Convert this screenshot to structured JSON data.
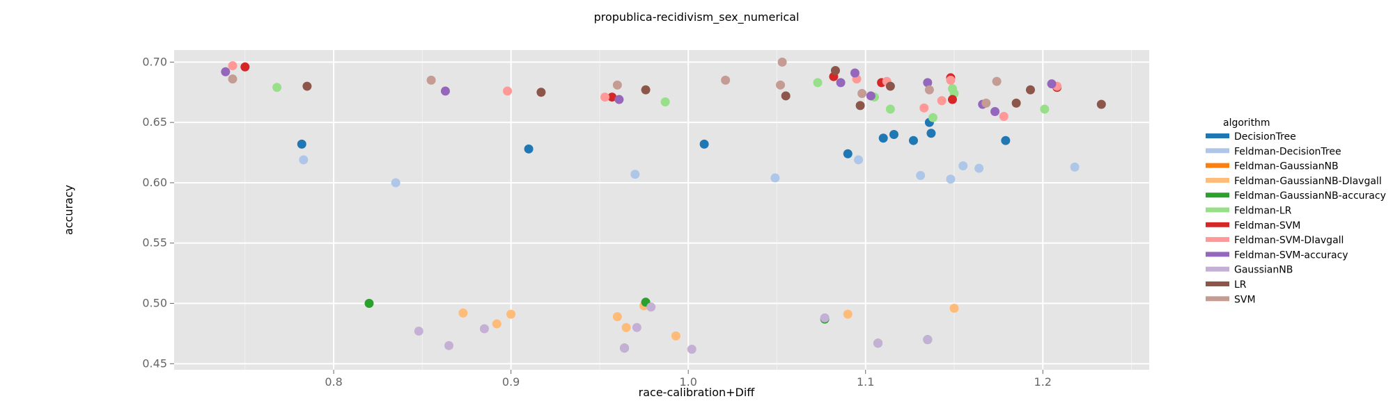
{
  "chart_data": {
    "type": "scatter",
    "title": "propublica-recidivism_sex_numerical",
    "xlabel": "race-calibration+Diff",
    "ylabel": "accuracy",
    "xlim": [
      0.71,
      1.26
    ],
    "ylim": [
      0.445,
      0.71
    ],
    "xticks": [
      0.8,
      0.9,
      1.0,
      1.1,
      1.2
    ],
    "xtick_labels": [
      "0.8",
      "0.9",
      "1.0",
      "1.1",
      "1.2"
    ],
    "yticks": [
      0.45,
      0.5,
      0.55,
      0.6,
      0.65,
      0.7
    ],
    "ytick_labels": [
      "0.45",
      "0.50",
      "0.55",
      "0.60",
      "0.65",
      "0.70"
    ],
    "grid": true,
    "legend_title": "algorithm",
    "legend_position": "right",
    "series": [
      {
        "name": "DecisionTree",
        "color": "#1f77b4",
        "points": [
          [
            0.782,
            0.632
          ],
          [
            0.91,
            0.628
          ],
          [
            1.009,
            0.632
          ],
          [
            1.09,
            0.624
          ],
          [
            1.11,
            0.637
          ],
          [
            1.116,
            0.64
          ],
          [
            1.127,
            0.635
          ],
          [
            1.136,
            0.65
          ],
          [
            1.137,
            0.641
          ],
          [
            1.179,
            0.635
          ]
        ]
      },
      {
        "name": "Feldman-DecisionTree",
        "color": "#aec7e8",
        "points": [
          [
            0.783,
            0.619
          ],
          [
            0.835,
            0.6
          ],
          [
            0.97,
            0.607
          ],
          [
            1.049,
            0.604
          ],
          [
            1.096,
            0.619
          ],
          [
            1.131,
            0.606
          ],
          [
            1.148,
            0.603
          ],
          [
            1.155,
            0.614
          ],
          [
            1.164,
            0.612
          ],
          [
            1.218,
            0.613
          ]
        ]
      },
      {
        "name": "Feldman-GaussianNB",
        "color": "#ff7f0e",
        "points": []
      },
      {
        "name": "Feldman-GaussianNB-DIavgall",
        "color": "#ffbb78",
        "points": [
          [
            0.873,
            0.492
          ],
          [
            0.892,
            0.483
          ],
          [
            0.9,
            0.491
          ],
          [
            0.96,
            0.489
          ],
          [
            0.965,
            0.48
          ],
          [
            0.975,
            0.498
          ],
          [
            0.993,
            0.473
          ],
          [
            1.09,
            0.491
          ],
          [
            1.15,
            0.496
          ]
        ]
      },
      {
        "name": "Feldman-GaussianNB-accuracy",
        "color": "#2ca02c",
        "points": [
          [
            0.82,
            0.5
          ],
          [
            0.964,
            0.463
          ],
          [
            0.976,
            0.501
          ],
          [
            1.077,
            0.487
          ],
          [
            1.107,
            0.467
          ],
          [
            1.135,
            0.47
          ]
        ]
      },
      {
        "name": "Feldman-LR",
        "color": "#98df8a",
        "points": [
          [
            0.768,
            0.679
          ],
          [
            0.987,
            0.667
          ],
          [
            1.073,
            0.683
          ],
          [
            1.105,
            0.671
          ],
          [
            1.114,
            0.661
          ],
          [
            1.138,
            0.654
          ],
          [
            1.149,
            0.678
          ],
          [
            1.15,
            0.674
          ],
          [
            1.201,
            0.661
          ]
        ]
      },
      {
        "name": "Feldman-SVM",
        "color": "#d62728",
        "points": [
          [
            0.75,
            0.696
          ],
          [
            0.957,
            0.671
          ],
          [
            1.082,
            0.688
          ],
          [
            1.109,
            0.683
          ],
          [
            1.148,
            0.687
          ],
          [
            1.149,
            0.669
          ],
          [
            1.208,
            0.679
          ]
        ]
      },
      {
        "name": "Feldman-SVM-DIavgall",
        "color": "#ff9896",
        "points": [
          [
            0.743,
            0.697
          ],
          [
            0.898,
            0.676
          ],
          [
            0.953,
            0.671
          ],
          [
            1.095,
            0.686
          ],
          [
            1.112,
            0.684
          ],
          [
            1.133,
            0.662
          ],
          [
            1.143,
            0.668
          ],
          [
            1.148,
            0.685
          ],
          [
            1.178,
            0.655
          ],
          [
            1.208,
            0.68
          ]
        ]
      },
      {
        "name": "Feldman-SVM-accuracy",
        "color": "#9467bd",
        "points": [
          [
            0.739,
            0.692
          ],
          [
            0.863,
            0.676
          ],
          [
            0.961,
            0.669
          ],
          [
            1.086,
            0.683
          ],
          [
            1.094,
            0.691
          ],
          [
            1.103,
            0.672
          ],
          [
            1.135,
            0.683
          ],
          [
            1.166,
            0.665
          ],
          [
            1.173,
            0.659
          ],
          [
            1.205,
            0.682
          ]
        ]
      },
      {
        "name": "GaussianNB",
        "color": "#c5b0d5",
        "points": [
          [
            0.848,
            0.477
          ],
          [
            0.865,
            0.465
          ],
          [
            0.885,
            0.479
          ],
          [
            0.964,
            0.463
          ],
          [
            0.971,
            0.48
          ],
          [
            0.979,
            0.497
          ],
          [
            1.002,
            0.462
          ],
          [
            1.077,
            0.488
          ],
          [
            1.107,
            0.467
          ],
          [
            1.135,
            0.47
          ]
        ]
      },
      {
        "name": "LR",
        "color": "#8c564b",
        "points": [
          [
            0.785,
            0.68
          ],
          [
            0.917,
            0.675
          ],
          [
            0.976,
            0.677
          ],
          [
            1.055,
            0.672
          ],
          [
            1.083,
            0.693
          ],
          [
            1.097,
            0.664
          ],
          [
            1.114,
            0.68
          ],
          [
            1.185,
            0.666
          ],
          [
            1.193,
            0.677
          ],
          [
            1.233,
            0.665
          ]
        ]
      },
      {
        "name": "SVM",
        "color": "#c49c94",
        "points": [
          [
            0.743,
            0.686
          ],
          [
            0.855,
            0.685
          ],
          [
            0.96,
            0.681
          ],
          [
            1.021,
            0.685
          ],
          [
            1.052,
            0.681
          ],
          [
            1.053,
            0.7
          ],
          [
            1.098,
            0.674
          ],
          [
            1.136,
            0.677
          ],
          [
            1.168,
            0.666
          ],
          [
            1.174,
            0.684
          ]
        ]
      }
    ]
  }
}
